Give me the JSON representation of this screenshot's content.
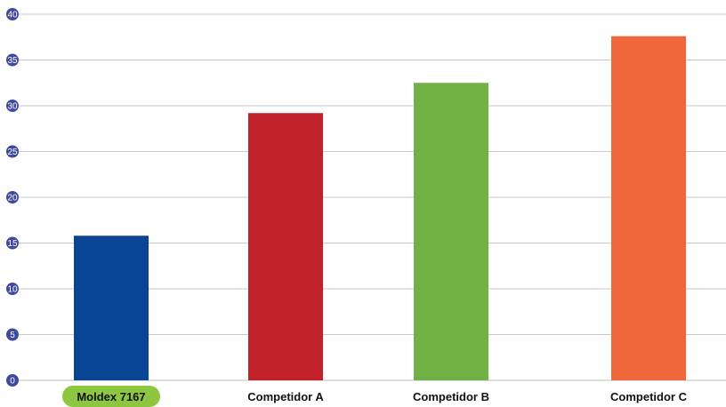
{
  "chart_data": {
    "type": "bar",
    "categories": [
      "Moldex 7167",
      "Competidor A",
      "Competidor B",
      "Competidor C"
    ],
    "values": [
      15.8,
      29.2,
      32.5,
      37.6
    ],
    "bar_colors": [
      "#0a4595",
      "#c0212a",
      "#71b043",
      "#f0673b"
    ],
    "highlight_category_color": "#8dc63f",
    "tick_badge_color": "#3f4a9c",
    "title": "",
    "xlabel": "",
    "ylabel": "",
    "ylim": [
      0,
      40
    ],
    "yticks": [
      "0",
      "5",
      "10",
      "15",
      "20",
      "25",
      "30",
      "35",
      "40"
    ],
    "grid": true,
    "legend": "none"
  }
}
